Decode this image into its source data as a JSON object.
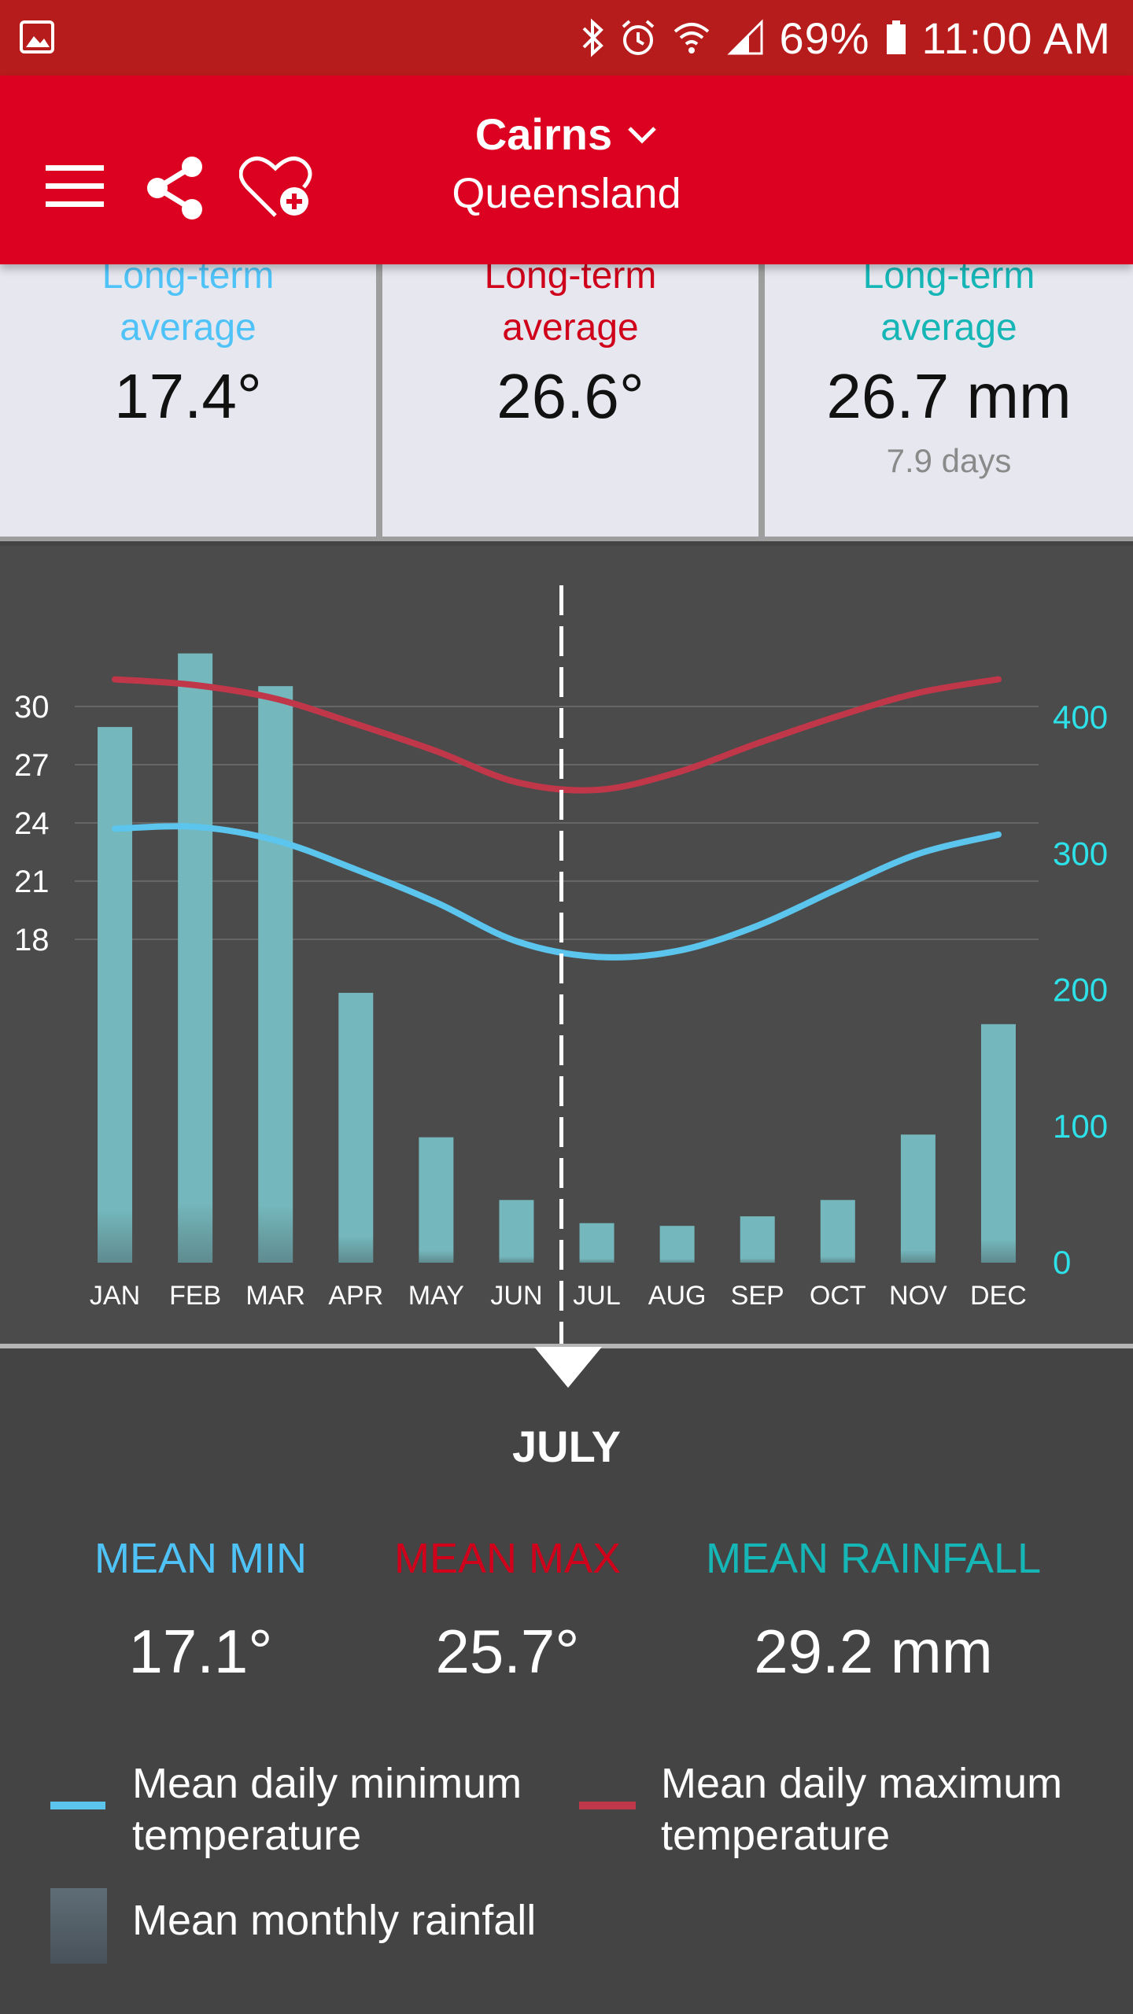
{
  "status_bar": {
    "battery": "69%",
    "time": "11:00 AM",
    "icons": [
      "gallery-icon",
      "bluetooth-icon",
      "alarm-icon",
      "wifi-icon",
      "signal-icon",
      "battery-icon"
    ]
  },
  "app_bar": {
    "city": "Cairns",
    "state": "Queensland",
    "icons": [
      "menu-icon",
      "share-icon",
      "favourite-add-icon",
      "chevron-down-icon"
    ]
  },
  "summary": {
    "min": {
      "label_line1": "Long-term",
      "label_line2": "average",
      "value": "17.4°"
    },
    "max": {
      "label_line1": "Long-term",
      "label_line2": "average",
      "value": "26.6°"
    },
    "rain": {
      "label_line1": "Long-term",
      "label_line2": "average",
      "value": "26.7 mm",
      "sub": "7.9 days"
    }
  },
  "chart_data": {
    "type": "bar+line",
    "categories": [
      "JAN",
      "FEB",
      "MAR",
      "APR",
      "MAY",
      "JUN",
      "JUL",
      "AUG",
      "SEP",
      "OCT",
      "NOV",
      "DEC"
    ],
    "rainfall_mm": [
      393,
      447,
      423,
      198,
      92,
      46,
      29,
      27,
      34,
      46,
      94,
      175
    ],
    "mean_min_temp": [
      23.7,
      23.8,
      23.1,
      21.6,
      19.9,
      17.9,
      17.1,
      17.4,
      18.7,
      20.6,
      22.4,
      23.4
    ],
    "mean_max_temp": [
      31.4,
      31.1,
      30.4,
      29.1,
      27.7,
      26.1,
      25.7,
      26.6,
      28.1,
      29.5,
      30.7,
      31.4
    ],
    "y_left": {
      "ticks": [
        "18",
        "21",
        "24",
        "27",
        "30"
      ],
      "range": [
        15.6,
        32.4
      ]
    },
    "y_right": {
      "ticks": [
        "0",
        "100",
        "200",
        "300",
        "400"
      ],
      "range": [
        0,
        500
      ]
    },
    "selected_month": "JUL",
    "colors": {
      "min": "#5bc5ee",
      "max": "#c0374a",
      "rain": "#74b8bd",
      "right_axis": "#2ee0e8"
    }
  },
  "details": {
    "month": "JULY",
    "mean_min_label": "MEAN MIN",
    "mean_max_label": "MEAN MAX",
    "mean_rain_label": "MEAN RAINFALL",
    "mean_min": "17.1°",
    "mean_max": "25.7°",
    "mean_rain": "29.2 mm"
  },
  "legend": {
    "min_line1": "Mean daily minimum",
    "min_line2": "temperature",
    "max_line1": "Mean daily maximum",
    "max_line2": "temperature",
    "rain": "Mean monthly rainfall"
  }
}
